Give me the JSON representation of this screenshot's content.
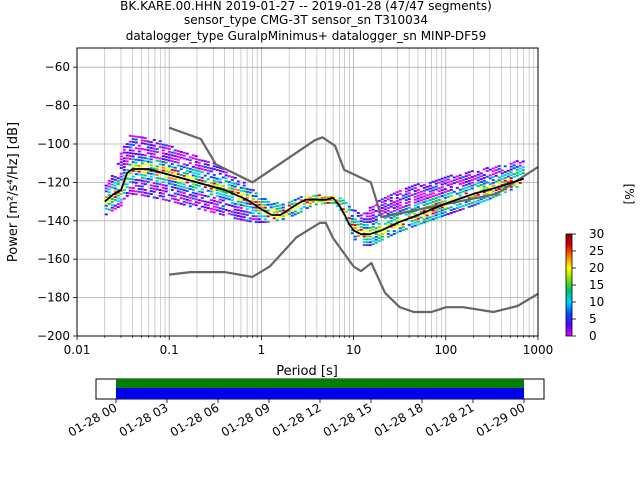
{
  "title": {
    "line1": "BK.KARE.00.HHN   2019-01-27 -- 2019-01-28  (47/47 segments)",
    "line2": "sensor_type CMG-3T sensor_sn T310034",
    "line3": "datalogger_type GuralpMinimus+ datalogger_sn MINP-DF59"
  },
  "colorbar": {
    "label": "[%]",
    "ticks": [
      "0",
      "5",
      "10",
      "15",
      "20",
      "25",
      "30"
    ],
    "range": [
      0,
      30
    ],
    "colors": [
      "#ffffff",
      "#e000ff",
      "#5a00ff",
      "#0050ff",
      "#00d0ff",
      "#00c070",
      "#80e000",
      "#ffff00",
      "#ff8000",
      "#e00000",
      "#800000"
    ]
  },
  "timeline": {
    "tick_labels": [
      "01-28 00",
      "01-28 03",
      "01-28 06",
      "01-28 09",
      "01-28 12",
      "01-28 15",
      "01-28 18",
      "01-28 21",
      "01-29 00"
    ],
    "coverage_color": "#0000ee",
    "gap_free_color": "#008000"
  },
  "chart_data": {
    "type": "line",
    "xlabel": "Period [s]",
    "ylabel": "Power [m²/s⁴/Hz] [dB]",
    "xscale": "log",
    "xlim": [
      0.01,
      1000
    ],
    "ylim": [
      -200,
      -50
    ],
    "xticks": [
      {
        "value": 0.01,
        "label": "0.01"
      },
      {
        "value": 0.1,
        "label": "0.1"
      },
      {
        "value": 1,
        "label": "1"
      },
      {
        "value": 10,
        "label": "10"
      },
      {
        "value": 100,
        "label": "100"
      },
      {
        "value": 1000,
        "label": "1000"
      }
    ],
    "yticks": [
      {
        "value": -60,
        "label": "−60"
      },
      {
        "value": -80,
        "label": "−80"
      },
      {
        "value": -100,
        "label": "−100"
      },
      {
        "value": -120,
        "label": "−120"
      },
      {
        "value": -140,
        "label": "−140"
      },
      {
        "value": -160,
        "label": "−160"
      },
      {
        "value": -180,
        "label": "−180"
      },
      {
        "value": -200,
        "label": "−200"
      }
    ],
    "grid": true,
    "series": [
      {
        "role": "high-noise-model",
        "color": "#666666",
        "x": [
          0.1,
          0.22,
          0.32,
          0.8,
          3.8,
          4.6,
          6.3,
          7.9,
          15.4,
          20,
          354.8,
          1000
        ],
        "y": [
          -91.5,
          -97.4,
          -110.5,
          -120,
          -98,
          -96.5,
          -101,
          -113.5,
          -120,
          -138,
          -126,
          -112
        ]
      },
      {
        "role": "low-noise-model",
        "color": "#666666",
        "x": [
          0.1,
          0.17,
          0.4,
          0.8,
          1.24,
          2.4,
          4.3,
          5,
          6,
          10,
          12,
          15.6,
          21.9,
          31.6,
          45,
          70,
          101,
          154,
          328,
          600,
          1000
        ],
        "y": [
          -168,
          -166.7,
          -166.7,
          -169.2,
          -163.7,
          -148.6,
          -141.1,
          -141.1,
          -149,
          -163.8,
          -166.2,
          -162,
          -177.5,
          -185,
          -187.5,
          -187.5,
          -185,
          -185,
          -187.5,
          -184.4,
          -178
        ]
      },
      {
        "role": "median",
        "color": "#000000",
        "x": [
          0.02,
          0.025,
          0.03,
          0.035,
          0.04,
          0.06,
          0.1,
          0.2,
          0.4,
          0.7,
          1.0,
          1.3,
          1.6,
          2.0,
          2.5,
          3.0,
          4.0,
          5.0,
          6.0,
          7.0,
          8.0,
          9.0,
          10,
          12,
          15,
          20,
          30,
          50,
          100,
          200,
          400,
          700
        ],
        "y": [
          -130,
          -126,
          -124,
          -115,
          -113,
          -113,
          -116,
          -120,
          -124,
          -129,
          -134,
          -137,
          -137,
          -134,
          -131,
          -129,
          -129,
          -129,
          -128,
          -132,
          -137,
          -142,
          -145,
          -147,
          -147,
          -145,
          -141,
          -137,
          -131,
          -126,
          -122,
          -118
        ]
      }
    ],
    "pdf": {
      "role": "probability-density-cloud",
      "units": "%",
      "samples": [
        {
          "x": 0.02,
          "y_low": -137,
          "y_high": -120
        },
        {
          "x": 0.025,
          "y_low": -134,
          "y_high": -115
        },
        {
          "x": 0.03,
          "y_low": -132,
          "y_high": -103
        },
        {
          "x": 0.035,
          "y_low": -126,
          "y_high": -95
        },
        {
          "x": 0.05,
          "y_low": -127,
          "y_high": -96
        },
        {
          "x": 0.08,
          "y_low": -129,
          "y_high": -99
        },
        {
          "x": 0.12,
          "y_low": -131,
          "y_high": -103
        },
        {
          "x": 0.2,
          "y_low": -134,
          "y_high": -107
        },
        {
          "x": 0.3,
          "y_low": -136,
          "y_high": -110
        },
        {
          "x": 0.5,
          "y_low": -139,
          "y_high": -117
        },
        {
          "x": 0.8,
          "y_low": -141,
          "y_high": -124
        },
        {
          "x": 1.2,
          "y_low": -141,
          "y_high": -131
        },
        {
          "x": 1.8,
          "y_low": -139,
          "y_high": -131
        },
        {
          "x": 2.5,
          "y_low": -136,
          "y_high": -128
        },
        {
          "x": 3.5,
          "y_low": -132,
          "y_high": -127
        },
        {
          "x": 5,
          "y_low": -131,
          "y_high": -127
        },
        {
          "x": 6,
          "y_low": -131,
          "y_high": -127
        },
        {
          "x": 7,
          "y_low": -135,
          "y_high": -128
        },
        {
          "x": 8,
          "y_low": -140,
          "y_high": -131
        },
        {
          "x": 10,
          "y_low": -150,
          "y_high": -135
        },
        {
          "x": 12,
          "y_low": -153,
          "y_high": -136
        },
        {
          "x": 15,
          "y_low": -153,
          "y_high": -133
        },
        {
          "x": 20,
          "y_low": -150,
          "y_high": -128
        },
        {
          "x": 30,
          "y_low": -146,
          "y_high": -124
        },
        {
          "x": 50,
          "y_low": -142,
          "y_high": -121
        },
        {
          "x": 100,
          "y_low": -137,
          "y_high": -117
        },
        {
          "x": 200,
          "y_low": -132,
          "y_high": -114
        },
        {
          "x": 400,
          "y_low": -126,
          "y_high": -111
        },
        {
          "x": 700,
          "y_low": -121,
          "y_high": -108
        }
      ]
    }
  }
}
